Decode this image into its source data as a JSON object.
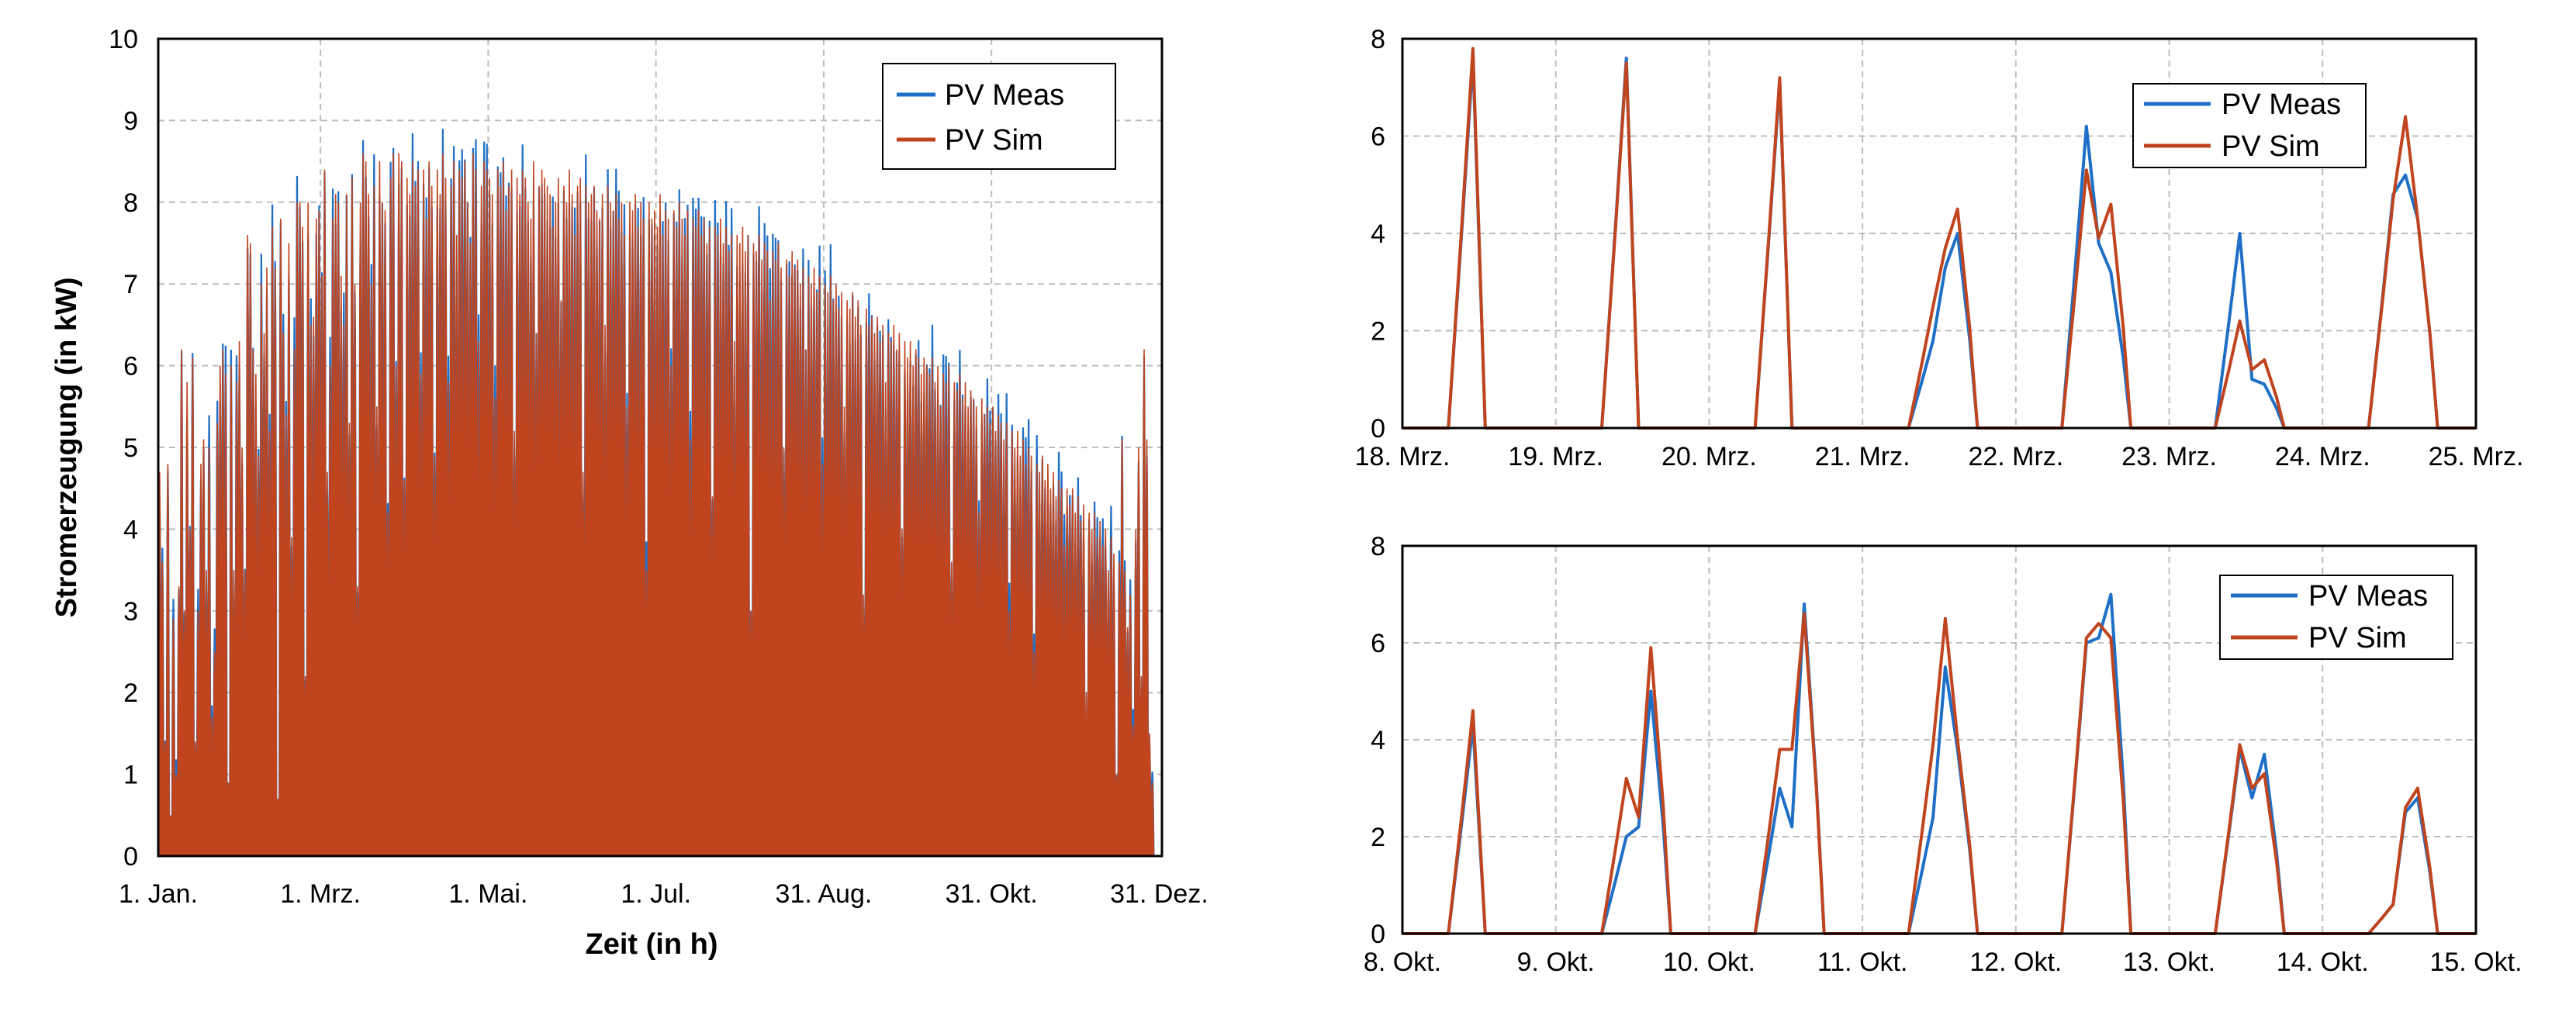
{
  "colors": {
    "meas": "#1f6fc6",
    "sim": "#c0441e",
    "grid": "#bdbdbd",
    "frame": "#000000"
  },
  "chart_data": [
    {
      "type": "area",
      "id": "annual",
      "xlabel": "Zeit (in h)",
      "ylabel": "Stromerzeugung (in kW)",
      "ylim": [
        0,
        10
      ],
      "yticks": [
        "0",
        "1",
        "2",
        "3",
        "4",
        "5",
        "6",
        "7",
        "8",
        "9",
        "10"
      ],
      "xticks": [
        "1. Jan.",
        "1. Mrz.",
        "1. Mai.",
        "1. Jul.",
        "31. Aug.",
        "31. Okt.",
        "31. Dez."
      ],
      "xtick_days": [
        0,
        59,
        120,
        181,
        242,
        303,
        364
      ],
      "xlim_days": [
        0,
        365
      ],
      "grid": true,
      "legend": "top-right",
      "series": [
        {
          "name": "PV Meas",
          "color": "#1f6fc6"
        },
        {
          "name": "PV Sim",
          "color": "#c0441e"
        }
      ],
      "daily_peaks_kw": [
        4.7,
        3.6,
        1.4,
        4.8,
        0.5,
        2.9,
        1.0,
        3.3,
        6.2,
        3.0,
        5.8,
        4.0,
        6.1,
        1.4,
        3.0,
        4.8,
        5.1,
        3.5,
        5.0,
        1.7,
        2.5,
        5.3,
        6.0,
        6.2,
        5.9,
        0.9,
        6.0,
        3.5,
        5.8,
        6.3,
        5.0,
        3.5,
        7.6,
        7.5,
        6.2,
        5.9,
        4.9,
        7.0,
        6.4,
        7.2,
        5.2,
        7.7,
        7.2,
        0.7,
        7.8,
        6.4,
        5.4,
        7.5,
        3.9,
        6.2,
        8.0,
        8.0,
        7.7,
        2.2,
        8.0,
        6.5,
        6.6,
        7.8,
        7.9,
        7.1,
        8.4,
        4.7,
        6.0,
        7.8,
        8.1,
        8.0,
        7.1,
        6.5,
        8.1,
        5.3,
        8.3,
        7.0,
        3.3,
        8.0,
        8.6,
        8.5,
        8.1,
        7.0,
        8.2,
        5.5,
        8.5,
        8.0,
        7.9,
        4.2,
        8.3,
        8.6,
        6.0,
        8.6,
        8.5,
        4.6,
        8.3,
        8.1,
        8.5,
        8.2,
        8.4,
        5.9,
        8.4,
        7.8,
        8.5,
        8.2,
        4.9,
        8.4,
        8.1,
        8.6,
        8.3,
        5.8,
        8.2,
        8.5,
        7.6,
        8.4,
        8.3,
        8.5,
        8.0,
        7.5,
        8.6,
        8.4,
        6.3,
        8.2,
        8.5,
        8.4,
        8.3,
        8.1,
        5.6,
        8.4,
        8.2,
        8.5,
        7.9,
        8.2,
        8.4,
        5.2,
        8.3,
        8.1,
        8.4,
        8.3,
        8.0,
        7.8,
        8.5,
        6.4,
        8.2,
        8.4,
        8.3,
        8.2,
        8.1,
        7.7,
        8.0,
        8.3,
        6.8,
        8.2,
        8.0,
        8.4,
        8.1,
        7.6,
        8.2,
        8.3,
        4.7,
        8.2,
        8.0,
        8.1,
        8.2,
        7.9,
        7.8,
        8.1,
        6.5,
        8.2,
        8.0,
        7.9,
        8.1,
        7.8,
        8.0,
        7.6,
        5.5,
        8.0,
        7.9,
        8.1,
        7.7,
        8.0,
        7.8,
        3.5,
        8.0,
        7.8,
        7.9,
        7.7,
        8.1,
        7.6,
        7.9,
        7.8,
        6.0,
        7.9,
        7.7,
        8.0,
        7.8,
        7.6,
        7.9,
        5.1,
        7.8,
        7.7,
        7.9,
        7.6,
        7.8,
        7.5,
        7.7,
        4.4,
        7.7,
        7.6,
        7.8,
        7.5,
        7.7,
        7.4,
        7.6,
        6.3,
        7.6,
        7.5,
        7.7,
        7.4,
        7.6,
        3.0,
        7.5,
        7.4,
        7.6,
        7.3,
        7.5,
        7.4,
        6.8,
        7.4,
        7.3,
        7.5,
        7.2,
        5.0,
        7.3,
        7.1,
        7.4,
        7.2,
        7.3,
        7.0,
        7.2,
        6.2,
        7.1,
        7.0,
        7.2,
        6.9,
        7.1,
        4.8,
        7.0,
        6.9,
        7.1,
        6.8,
        7.0,
        6.7,
        6.9,
        5.5,
        6.8,
        6.7,
        6.9,
        6.6,
        6.8,
        6.5,
        3.2,
        6.7,
        6.5,
        6.6,
        6.4,
        6.6,
        6.3,
        6.5,
        5.8,
        6.4,
        6.3,
        6.5,
        6.2,
        6.4,
        4.0,
        6.3,
        6.1,
        6.3,
        6.0,
        6.2,
        6.1,
        5.9,
        6.1,
        6.0,
        5.9,
        6.1,
        5.8,
        6.0,
        5.5,
        5.9,
        5.8,
        6.0,
        3.6,
        5.8,
        5.7,
        5.9,
        5.6,
        5.8,
        5.5,
        5.7,
        5.6,
        5.5,
        4.2,
        5.6,
        5.4,
        5.5,
        5.3,
        5.5,
        5.2,
        5.4,
        5.3,
        5.1,
        5.3,
        3.0,
        5.2,
        5.0,
        5.2,
        4.9,
        5.1,
        4.8,
        5.0,
        4.9,
        2.5,
        4.8,
        4.7,
        4.9,
        4.6,
        4.8,
        4.5,
        4.7,
        4.4,
        4.6,
        4.5,
        3.8,
        4.5,
        4.3,
        4.5,
        4.2,
        4.4,
        4.1,
        4.3,
        2.0,
        4.2,
        4.0,
        4.2,
        3.9,
        4.1,
        3.8,
        4.0,
        3.5,
        3.9,
        3.7,
        1.0,
        3.6,
        5.1,
        3.5,
        2.8,
        3.2,
        1.6,
        4.0,
        5.0,
        2.2,
        6.2,
        5.1,
        1.5,
        0.9
      ]
    },
    {
      "type": "line",
      "id": "march",
      "xticks": [
        "18. Mrz.",
        "19. Mrz.",
        "20. Mrz.",
        "21. Mrz.",
        "22. Mrz.",
        "23. Mrz.",
        "24. Mrz.",
        "25. Mrz."
      ],
      "ylim": [
        0,
        8
      ],
      "yticks": [
        "0",
        "2",
        "4",
        "6",
        "8"
      ],
      "grid": true,
      "legend": "top-right",
      "days": [
        {
          "meas": [
            7.6,
            0.0,
            0.0
          ],
          "sim": [
            7.8,
            0.0,
            0.0
          ]
        },
        {
          "meas": [
            7.6,
            0.0,
            0.0
          ],
          "sim": [
            7.5,
            0.0,
            0.0
          ]
        },
        {
          "meas": [
            7.1,
            0.0,
            0.0
          ],
          "sim": [
            7.2,
            0.0,
            0.0
          ]
        },
        {
          "meas": [
            1.8,
            3.3,
            4.0
          ],
          "sim": [
            2.5,
            3.7,
            4.5
          ]
        },
        {
          "meas": [
            6.2,
            3.8,
            3.2
          ],
          "sim": [
            5.3,
            3.9,
            4.6
          ]
        },
        {
          "meas": [
            4.0,
            1.0,
            0.9
          ],
          "sim": [
            2.2,
            1.2,
            1.4
          ]
        },
        {
          "meas": [
            4.8,
            5.2,
            4.3
          ],
          "sim": [
            4.7,
            6.4,
            4.3
          ]
        }
      ],
      "series": [
        {
          "name": "PV Meas",
          "color": "#1f6fc6"
        },
        {
          "name": "PV Sim",
          "color": "#c0441e"
        }
      ]
    },
    {
      "type": "line",
      "id": "october",
      "xticks": [
        "8. Okt.",
        "9. Okt.",
        "10. Okt.",
        "11. Okt.",
        "12. Okt.",
        "13. Okt.",
        "14. Okt.",
        "15. Okt."
      ],
      "ylim": [
        0,
        8
      ],
      "yticks": [
        "0",
        "2",
        "4",
        "6",
        "8"
      ],
      "grid": true,
      "legend": "top-right",
      "days": [
        {
          "meas": [
            4.3,
            0.0,
            0.0
          ],
          "sim": [
            4.6,
            0.0,
            0.0
          ]
        },
        {
          "meas": [
            2.0,
            2.2,
            5.0
          ],
          "sim": [
            3.2,
            2.4,
            5.9
          ]
        },
        {
          "meas": [
            3.0,
            2.2,
            6.8
          ],
          "sim": [
            3.8,
            3.8,
            6.6
          ]
        },
        {
          "meas": [
            2.4,
            5.5,
            3.8
          ],
          "sim": [
            3.9,
            6.5,
            4.0
          ]
        },
        {
          "meas": [
            6.0,
            6.1,
            7.0
          ],
          "sim": [
            6.1,
            6.4,
            6.1
          ]
        },
        {
          "meas": [
            3.8,
            2.8,
            3.7
          ],
          "sim": [
            3.9,
            3.0,
            3.3
          ]
        },
        {
          "meas": [
            0.6,
            2.5,
            2.8
          ],
          "sim": [
            0.6,
            2.6,
            3.0
          ]
        }
      ],
      "series": [
        {
          "name": "PV Meas",
          "color": "#1f6fc6"
        },
        {
          "name": "PV Sim",
          "color": "#c0441e"
        }
      ]
    }
  ]
}
